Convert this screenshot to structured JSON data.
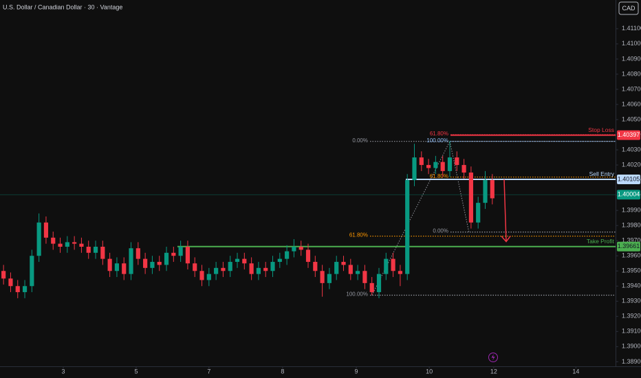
{
  "chart_data": {
    "type": "candlestick",
    "title": "U.S. Dollar / Canadian Dollar · 30 · Vantage",
    "currency": "CAD",
    "x": [
      0,
      1,
      2,
      3,
      4,
      5,
      6,
      7,
      8,
      9,
      10,
      11,
      12,
      13,
      14,
      15,
      16,
      17,
      18,
      19,
      20,
      21,
      22,
      23,
      24,
      25,
      26,
      27,
      28,
      29,
      30,
      31,
      32,
      33,
      34,
      35,
      36,
      37,
      38,
      39,
      40,
      41,
      42,
      43,
      44,
      45,
      46,
      47,
      48,
      49,
      50,
      51,
      52,
      53,
      54,
      55,
      56,
      57,
      58,
      59,
      60,
      61,
      62,
      63,
      64,
      65,
      66,
      67,
      68,
      69
    ],
    "open": [
      1.395,
      1.3945,
      1.394,
      1.3936,
      1.394,
      1.396,
      1.3982,
      1.3972,
      1.3968,
      1.3966,
      1.3969,
      1.3968,
      1.3966,
      1.3962,
      1.3966,
      1.3958,
      1.395,
      1.3955,
      1.3948,
      1.3965,
      1.3958,
      1.3952,
      1.3956,
      1.3954,
      1.3962,
      1.396,
      1.3966,
      1.3955,
      1.395,
      1.3944,
      1.3948,
      1.3952,
      1.395,
      1.3956,
      1.3958,
      1.3955,
      1.3948,
      1.3952,
      1.395,
      1.3956,
      1.3958,
      1.3963,
      1.3966,
      1.3964,
      1.3956,
      1.395,
      1.3942,
      1.3948,
      1.3956,
      1.3954,
      1.3948,
      1.395,
      1.3942,
      1.3936,
      1.3948,
      1.3958,
      1.395,
      1.3948,
      1.401,
      1.4025,
      1.402,
      1.4018,
      1.4022,
      1.4016,
      1.4025,
      1.402,
      1.4015,
      1.3982,
      1.3995,
      1.401
    ],
    "high": [
      1.3954,
      1.3949,
      1.3944,
      1.3944,
      1.3964,
      1.3988,
      1.3986,
      1.3976,
      1.3972,
      1.3973,
      1.3973,
      1.3972,
      1.397,
      1.397,
      1.397,
      1.3962,
      1.3959,
      1.3959,
      1.3969,
      1.3969,
      1.3962,
      1.396,
      1.396,
      1.3966,
      1.3966,
      1.397,
      1.397,
      1.3959,
      1.3954,
      1.3952,
      1.3956,
      1.3956,
      1.396,
      1.3962,
      1.3962,
      1.3959,
      1.3956,
      1.3956,
      1.396,
      1.3962,
      1.3967,
      1.3971,
      1.397,
      1.3968,
      1.396,
      1.3954,
      1.3952,
      1.396,
      1.396,
      1.3958,
      1.3954,
      1.3954,
      1.3946,
      1.3952,
      1.3962,
      1.3962,
      1.3954,
      1.4014,
      1.4034,
      1.4029,
      1.4024,
      1.4026,
      1.4026,
      1.4036,
      1.4029,
      1.4024,
      1.4019,
      1.3999,
      1.4016,
      1.4014
    ],
    "low": [
      1.3941,
      1.3936,
      1.3932,
      1.3932,
      1.3936,
      1.3956,
      1.3968,
      1.3964,
      1.3962,
      1.3962,
      1.3964,
      1.3962,
      1.3958,
      1.3958,
      1.3954,
      1.3946,
      1.3946,
      1.3944,
      1.3944,
      1.3954,
      1.3948,
      1.3948,
      1.395,
      1.395,
      1.3956,
      1.3956,
      1.3951,
      1.3946,
      1.394,
      1.394,
      1.3944,
      1.3946,
      1.3946,
      1.3952,
      1.3951,
      1.3944,
      1.3944,
      1.3946,
      1.3946,
      1.3952,
      1.3954,
      1.3959,
      1.396,
      1.3952,
      1.3946,
      1.3933,
      1.3938,
      1.3944,
      1.395,
      1.3944,
      1.3944,
      1.3938,
      1.3934,
      1.3932,
      1.3944,
      1.3946,
      1.394,
      1.3944,
      1.4006,
      1.4016,
      1.4014,
      1.4014,
      1.4012,
      1.4012,
      1.4016,
      1.4011,
      1.3978,
      1.3978,
      1.3991,
      1.3994
    ],
    "close": [
      1.3945,
      1.394,
      1.3936,
      1.394,
      1.396,
      1.3982,
      1.3972,
      1.3968,
      1.3966,
      1.3969,
      1.3968,
      1.3966,
      1.3962,
      1.3966,
      1.3958,
      1.395,
      1.3955,
      1.3948,
      1.3965,
      1.3958,
      1.3952,
      1.3956,
      1.3954,
      1.3962,
      1.396,
      1.3966,
      1.3955,
      1.395,
      1.3944,
      1.3948,
      1.3952,
      1.395,
      1.3956,
      1.3958,
      1.3955,
      1.3948,
      1.3952,
      1.395,
      1.3956,
      1.3958,
      1.3963,
      1.3966,
      1.3964,
      1.3956,
      1.395,
      1.3942,
      1.3948,
      1.3956,
      1.3954,
      1.3948,
      1.395,
      1.3942,
      1.3936,
      1.3948,
      1.3958,
      1.395,
      1.3948,
      1.401,
      1.4025,
      1.402,
      1.4018,
      1.4022,
      1.4016,
      1.4025,
      1.402,
      1.4015,
      1.3982,
      1.3995,
      1.401,
      1.3998
    ],
    "up_color": "#089981",
    "down_color": "#f23645",
    "xlim": [
      -0.5,
      86.4
    ],
    "xticks": [
      {
        "value": 8.43,
        "label": "3"
      },
      {
        "value": 18.72,
        "label": "5"
      },
      {
        "value": 29.0,
        "label": "7"
      },
      {
        "value": 39.4,
        "label": "8"
      },
      {
        "value": 49.8,
        "label": "9"
      },
      {
        "value": 60.1,
        "label": "10"
      },
      {
        "value": 69.2,
        "label": "12"
      },
      {
        "value": 80.8,
        "label": "14"
      }
    ],
    "ylim": [
      1.3887,
      1.4129
    ],
    "yticks": [
      {
        "value": 1.411,
        "label": "1.41100"
      },
      {
        "value": 1.41,
        "label": "1.41000"
      },
      {
        "value": 1.409,
        "label": "1.40900"
      },
      {
        "value": 1.408,
        "label": "1.40800"
      },
      {
        "value": 1.407,
        "label": "1.40700"
      },
      {
        "value": 1.406,
        "label": "1.40600"
      },
      {
        "value": 1.405,
        "label": "1.40500"
      },
      {
        "value": 1.404,
        "label": "1.40400"
      },
      {
        "value": 1.403,
        "label": "1.40300"
      },
      {
        "value": 1.402,
        "label": "1.40200"
      },
      {
        "value": 1.401,
        "label": "1.40100"
      },
      {
        "value": 1.4,
        "label": "1.40000"
      },
      {
        "value": 1.399,
        "label": "1.39900"
      },
      {
        "value": 1.398,
        "label": "1.39800"
      },
      {
        "value": 1.397,
        "label": "1.39700"
      },
      {
        "value": 1.396,
        "label": "1.39600"
      },
      {
        "value": 1.395,
        "label": "1.39500"
      },
      {
        "value": 1.394,
        "label": "1.39400"
      },
      {
        "value": 1.393,
        "label": "1.39300"
      },
      {
        "value": 1.392,
        "label": "1.39200"
      },
      {
        "value": 1.391,
        "label": "1.39100"
      },
      {
        "value": 1.39,
        "label": "1.39000"
      },
      {
        "value": 1.389,
        "label": "1.38900"
      }
    ],
    "levels": [
      {
        "label": "Stop Loss",
        "value": 1.40397,
        "price_label": "1.40397",
        "color": "#f23645"
      },
      {
        "label": "Sell Entry",
        "value": 1.40105,
        "price_label": "1.40105",
        "color": "#bbd9fb"
      },
      {
        "label": "Take Profit",
        "value": 1.39661,
        "price_label": "1.39661",
        "color": "#4caf50"
      }
    ],
    "last_price": {
      "value": 1.40004,
      "label": "1.40004",
      "color": "#089981"
    },
    "fib_left": [
      {
        "label": "0.00%",
        "value": 1.40356,
        "color": "#9598a1"
      },
      {
        "label": "61.80%",
        "value": 1.3973,
        "color": "#ff9800"
      },
      {
        "label": "100.00%",
        "value": 1.3934,
        "color": "#9598a1"
      }
    ],
    "fib_right": [
      {
        "label": "61.80%",
        "value": 1.404,
        "color": "#f23645"
      },
      {
        "label": "100.00%",
        "value": 1.40356,
        "color": "#90bff9"
      },
      {
        "label": "61.80%",
        "value": 1.4012,
        "color": "#ff9800"
      },
      {
        "label": "0.00%",
        "value": 1.39757,
        "color": "#9598a1"
      }
    ]
  }
}
